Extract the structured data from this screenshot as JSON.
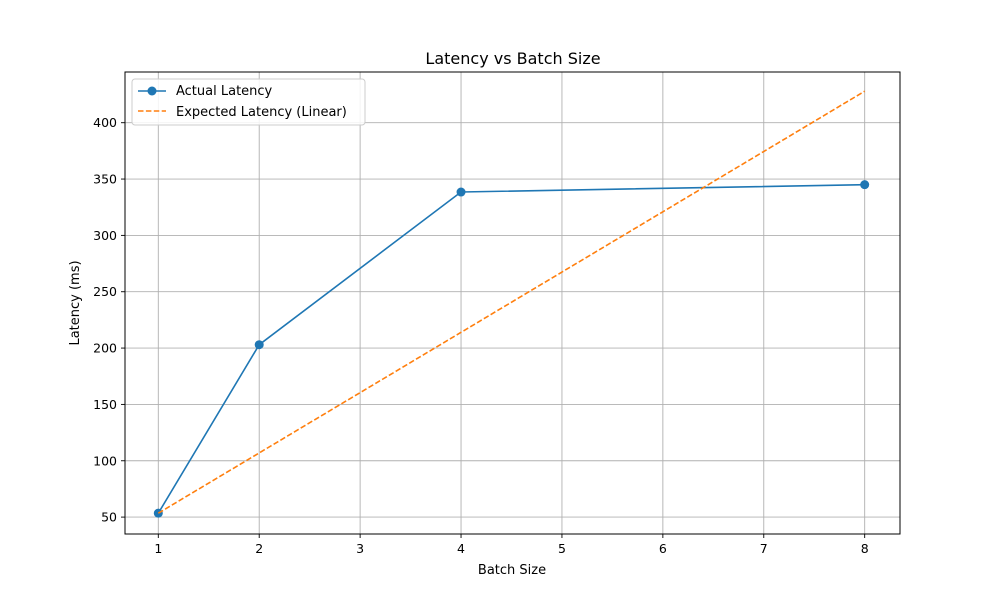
{
  "chart_data": {
    "type": "line",
    "title": "Latency vs Batch Size",
    "xlabel": "Batch Size",
    "ylabel": "Latency (ms)",
    "xlim": [
      0.67,
      8.35
    ],
    "ylim": [
      35,
      445
    ],
    "xticks": [
      1,
      2,
      3,
      4,
      5,
      6,
      7,
      8
    ],
    "yticks": [
      50,
      100,
      150,
      200,
      250,
      300,
      350,
      400
    ],
    "grid": true,
    "legend_position": "top-left",
    "series": [
      {
        "name": "Actual Latency",
        "color": "#1f77b4",
        "style": "solid",
        "marker": "circle",
        "x": [
          1,
          2,
          4,
          8
        ],
        "y": [
          53.5,
          203,
          338.5,
          345
        ]
      },
      {
        "name": "Expected Latency (Linear)",
        "color": "#ff7f0e",
        "style": "dashed",
        "marker": "none",
        "x": [
          1,
          8
        ],
        "y": [
          53.5,
          428
        ]
      }
    ]
  }
}
